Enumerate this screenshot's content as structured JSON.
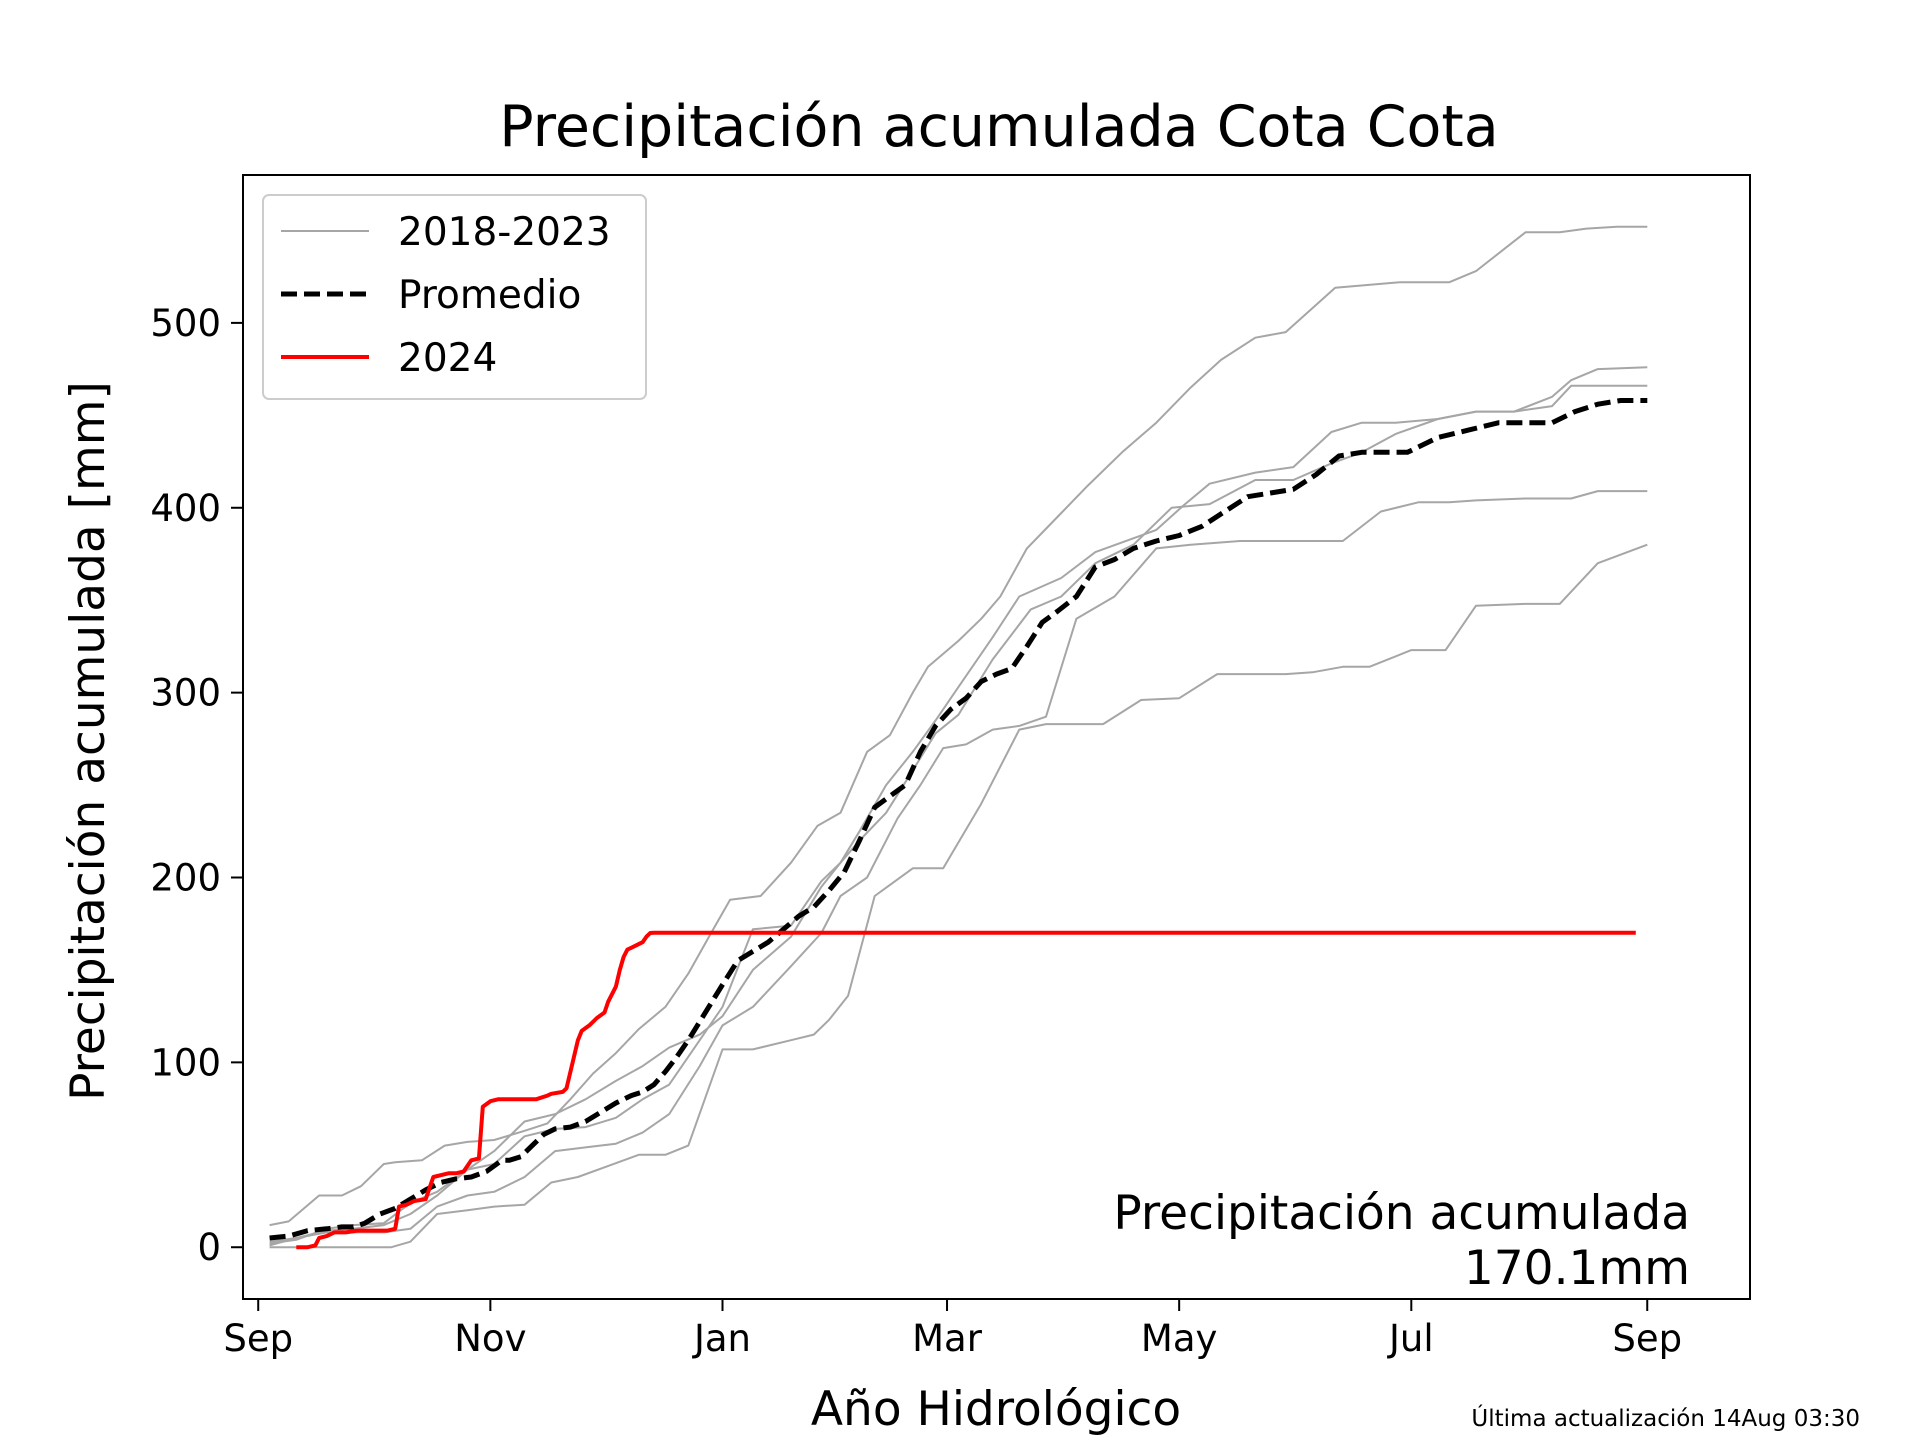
{
  "chart_data": {
    "type": "line",
    "title": "Precipitación acumulada Cota Cota",
    "xlabel": "Año Hidrológico",
    "ylabel": "Precipitación acumulada [mm]",
    "x_unit": "day of hydrological year (0 = 1 Sep)",
    "xlim": [
      -4,
      392
    ],
    "ylim": [
      -28,
      580
    ],
    "x_ticks": [
      {
        "label": "Sep",
        "day": 0
      },
      {
        "label": "Nov",
        "day": 61
      },
      {
        "label": "Jan",
        "day": 122
      },
      {
        "label": "Mar",
        "day": 181
      },
      {
        "label": "May",
        "day": 242
      },
      {
        "label": "Jul",
        "day": 303
      },
      {
        "label": "Sep",
        "day": 365
      }
    ],
    "y_ticks": [
      0,
      100,
      200,
      300,
      400,
      500
    ],
    "grid": false,
    "legend": {
      "position": "top-left",
      "entries": [
        {
          "label": "2018-2023",
          "color": "#a6a6a6",
          "style": "solid-thin"
        },
        {
          "label": "Promedio",
          "color": "#000000",
          "style": "dashed"
        },
        {
          "label": "2024",
          "color": "#ff0000",
          "style": "solid"
        }
      ]
    },
    "series": [
      {
        "name": "2018-2023",
        "color": "#a6a6a6",
        "x": [
          3,
          8,
          16,
          22,
          27,
          33,
          36,
          43,
          49,
          55,
          62,
          70,
          76,
          82,
          88,
          94,
          100,
          107,
          113,
          119,
          124,
          132,
          140,
          147,
          153,
          160,
          166,
          172,
          176,
          184,
          190,
          195,
          202,
          210,
          218,
          227,
          236,
          245,
          253,
          262,
          270,
          283,
          300,
          313,
          320,
          333,
          342,
          349,
          357,
          365
        ],
        "y": [
          12,
          14,
          28,
          28,
          33,
          45,
          46,
          47,
          55,
          57,
          58,
          63,
          67,
          80,
          94,
          105,
          118,
          130,
          148,
          170,
          188,
          190,
          208,
          228,
          235,
          268,
          277,
          300,
          314,
          328,
          340,
          352,
          378,
          395,
          412,
          430,
          446,
          465,
          480,
          492,
          495,
          519,
          522,
          522,
          528,
          549,
          549,
          551,
          552,
          552
        ]
      },
      {
        "name": "2018-2023",
        "color": "#a6a6a6",
        "x": [
          3,
          10,
          18,
          25,
          33,
          40,
          47,
          55,
          62,
          70,
          78,
          86,
          94,
          101,
          108,
          116,
          122,
          130,
          140,
          148,
          153,
          158,
          165,
          172,
          178,
          184,
          193,
          200,
          211,
          220,
          236,
          243,
          250,
          262,
          272,
          282,
          290,
          299,
          310,
          320,
          330,
          340,
          345,
          352,
          365
        ],
        "y": [
          2,
          4,
          10,
          12,
          13,
          24,
          30,
          42,
          52,
          68,
          72,
          80,
          90,
          98,
          108,
          115,
          125,
          150,
          168,
          195,
          208,
          225,
          250,
          268,
          285,
          303,
          330,
          352,
          362,
          376,
          388,
          401,
          413,
          419,
          422,
          441,
          446,
          446,
          448,
          452,
          452,
          460,
          469,
          475,
          476
        ]
      },
      {
        "name": "2018-2023",
        "color": "#a6a6a6",
        "x": [
          3,
          10,
          18,
          25,
          33,
          40,
          47,
          55,
          62,
          70,
          78,
          86,
          94,
          101,
          108,
          116,
          122,
          130,
          140,
          148,
          153,
          158,
          165,
          172,
          178,
          184,
          193,
          203,
          211,
          220,
          230,
          240,
          250,
          262,
          272,
          282,
          290,
          299,
          310,
          320,
          330,
          340,
          345,
          352,
          365
        ],
        "y": [
          1,
          5,
          9,
          10,
          12,
          18,
          28,
          42,
          45,
          60,
          64,
          65,
          70,
          80,
          88,
          112,
          130,
          172,
          174,
          198,
          208,
          220,
          235,
          258,
          278,
          288,
          318,
          345,
          352,
          370,
          380,
          400,
          402,
          415,
          415,
          424,
          430,
          440,
          448,
          452,
          452,
          455,
          466,
          466,
          466
        ]
      },
      {
        "name": "2018-2023",
        "color": "#a6a6a6",
        "x": [
          3,
          10,
          18,
          25,
          33,
          40,
          47,
          55,
          62,
          70,
          78,
          86,
          94,
          101,
          108,
          116,
          122,
          130,
          140,
          148,
          153,
          160,
          168,
          174,
          180,
          186,
          193,
          200,
          207,
          215,
          225,
          236,
          245,
          258,
          270,
          277,
          285,
          295,
          305,
          313,
          320,
          333,
          340,
          345,
          352,
          365
        ],
        "y": [
          3,
          5,
          8,
          8,
          8,
          10,
          22,
          28,
          30,
          38,
          52,
          54,
          56,
          62,
          72,
          98,
          120,
          130,
          152,
          170,
          190,
          200,
          232,
          250,
          270,
          272,
          280,
          282,
          287,
          340,
          352,
          378,
          380,
          382,
          382,
          382,
          382,
          398,
          403,
          403,
          404,
          405,
          405,
          405,
          409,
          409
        ]
      },
      {
        "name": "2018-2023",
        "color": "#a6a6a6",
        "x": [
          3,
          8,
          16,
          22,
          28,
          35,
          40,
          47,
          55,
          62,
          70,
          77,
          84,
          92,
          100,
          107,
          113,
          122,
          130,
          140,
          146,
          150,
          155,
          162,
          172,
          180,
          190,
          200,
          207,
          215,
          222,
          232,
          242,
          252,
          262,
          270,
          277,
          285,
          292,
          303,
          312,
          320,
          333,
          342,
          352,
          365
        ],
        "y": [
          0,
          0,
          0,
          0,
          0,
          0,
          3,
          18,
          20,
          22,
          23,
          35,
          38,
          44,
          50,
          50,
          55,
          107,
          107,
          112,
          115,
          123,
          136,
          190,
          205,
          205,
          240,
          280,
          283,
          283,
          283,
          296,
          297,
          310,
          310,
          310,
          311,
          314,
          314,
          323,
          323,
          347,
          348,
          348,
          370,
          380
        ]
      },
      {
        "name": "Promedio",
        "color": "#000000",
        "x": [
          3,
          8,
          13,
          18,
          22,
          25,
          28,
          32,
          36,
          40,
          44,
          48,
          52,
          56,
          60,
          64,
          66,
          69,
          72,
          75,
          78,
          82,
          86,
          90,
          94,
          98,
          101,
          104,
          107,
          110,
          113,
          116,
          119,
          122,
          126,
          130,
          134,
          138,
          142,
          146,
          150,
          154,
          158,
          162,
          166,
          170,
          174,
          178,
          182,
          186,
          190,
          194,
          198,
          202,
          206,
          210,
          215,
          220,
          225,
          230,
          236,
          242,
          248,
          254,
          260,
          266,
          272,
          278,
          284,
          290,
          296,
          302,
          310,
          318,
          326,
          334,
          340,
          346,
          352,
          358,
          365
        ],
        "y": [
          5,
          6,
          9,
          10,
          11,
          11,
          13,
          18,
          21,
          26,
          31,
          35,
          37,
          38,
          41,
          47,
          47,
          49,
          55,
          61,
          64,
          65,
          68,
          73,
          78,
          82,
          84,
          88,
          95,
          103,
          112,
          122,
          132,
          142,
          155,
          160,
          165,
          172,
          179,
          184,
          193,
          203,
          220,
          238,
          244,
          250,
          268,
          282,
          291,
          297,
          306,
          310,
          313,
          325,
          338,
          344,
          352,
          368,
          372,
          378,
          382,
          385,
          390,
          398,
          406,
          408,
          410,
          418,
          428,
          430,
          430,
          430,
          438,
          442,
          446,
          446,
          446,
          452,
          456,
          458,
          458
        ]
      },
      {
        "name": "2024",
        "color": "#ff0000",
        "x": [
          10,
          11,
          13,
          15,
          16,
          18,
          20,
          23,
          26,
          30,
          34,
          36,
          37,
          39,
          41,
          44,
          46,
          50,
          52,
          54,
          56,
          58,
          59,
          61,
          63,
          66,
          68,
          71,
          73,
          76,
          77,
          80,
          81,
          84,
          85,
          87,
          89,
          91,
          92,
          94,
          95,
          96,
          97,
          98,
          99,
          101,
          102,
          103,
          104,
          362
        ],
        "y": [
          0,
          0,
          0,
          1,
          5,
          6,
          8,
          8,
          9,
          9,
          9,
          10,
          22,
          23,
          25,
          26,
          38,
          40,
          40,
          41,
          47,
          48,
          76,
          79,
          80,
          80,
          80,
          80,
          80,
          82,
          83,
          84,
          86,
          112,
          117,
          120,
          124,
          127,
          133,
          141,
          150,
          157,
          161,
          162,
          163,
          165,
          168,
          170,
          170.1,
          170.1
        ]
      }
    ],
    "annotation": {
      "line1": "Precipitación acumulada",
      "line2": "170.1mm"
    }
  },
  "footer": {
    "updated": "Última actualización 14Aug 03:30"
  }
}
